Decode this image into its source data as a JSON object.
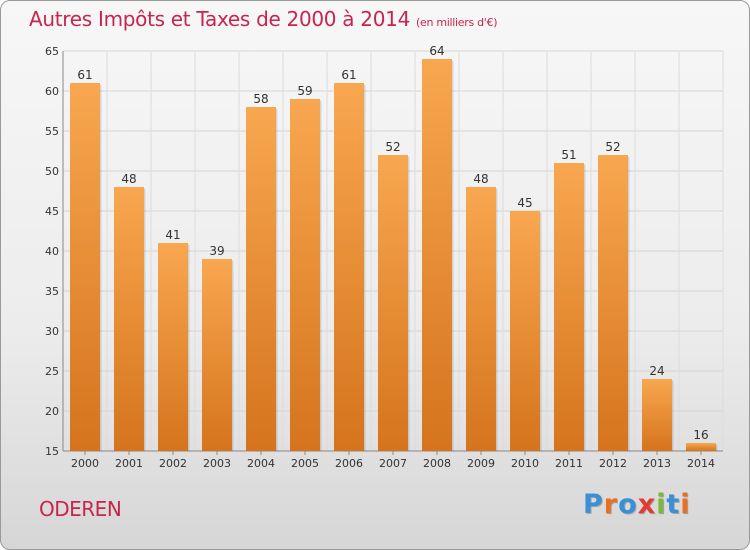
{
  "header": {
    "title": "Autres Impôts et Taxes de 2000 à 2014",
    "unit": "(en milliers d'€)"
  },
  "footer": {
    "city": "ODEREN",
    "logo": "Proxiti"
  },
  "colors": {
    "title": "#c8254d",
    "bar_light": "#f8a750",
    "bar_dark": "#d5741c",
    "logo_letters": [
      "#3a8fd6",
      "#e8701f",
      "#3a8fd6",
      "#e63a2e",
      "#7cb93a",
      "#3a8fd6",
      "#e8701f"
    ]
  },
  "chart_data": {
    "type": "bar",
    "title": "Autres Impôts et Taxes de 2000 à 2014",
    "subtitle": "(en milliers d'€)",
    "categories": [
      "2000",
      "2001",
      "2002",
      "2003",
      "2004",
      "2005",
      "2006",
      "2007",
      "2008",
      "2009",
      "2010",
      "2011",
      "2012",
      "2013",
      "2014"
    ],
    "values": [
      61,
      48,
      41,
      39,
      58,
      59,
      61,
      52,
      64,
      48,
      45,
      51,
      52,
      24,
      16
    ],
    "ylim": [
      15,
      65
    ],
    "yticks": [
      15,
      20,
      25,
      30,
      35,
      40,
      45,
      50,
      55,
      60,
      65
    ],
    "grid": true,
    "legend": "none"
  }
}
